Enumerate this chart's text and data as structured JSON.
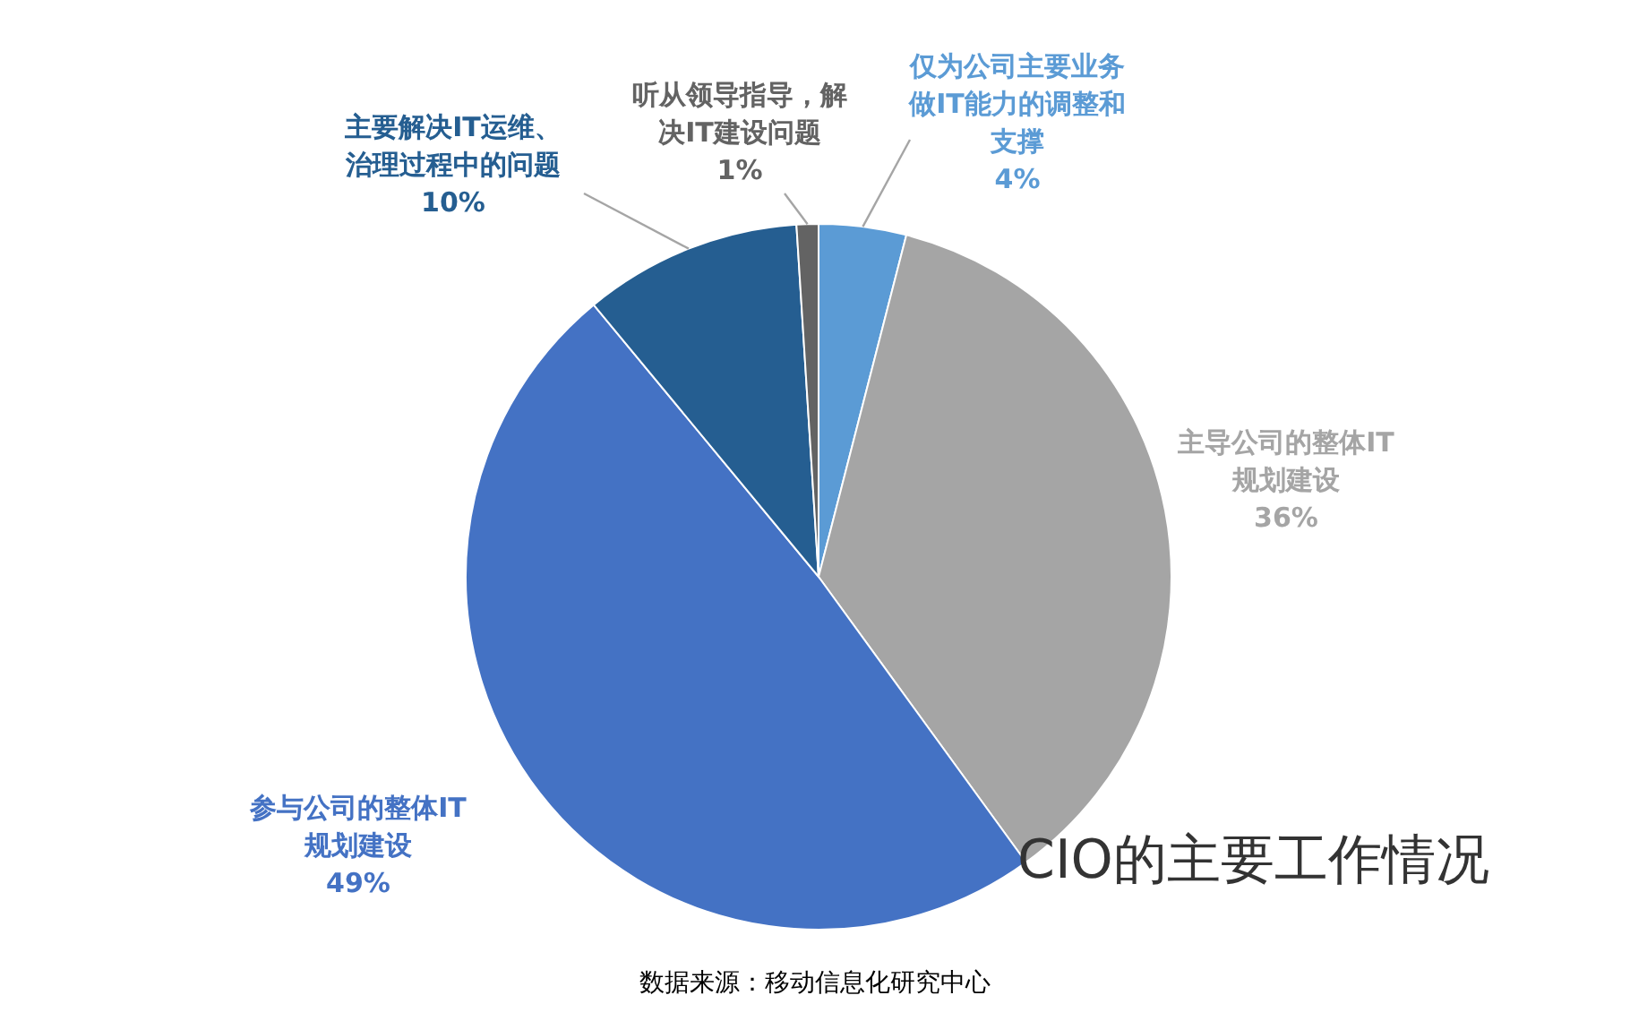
{
  "chart_data": {
    "type": "pie",
    "title": "CIO的主要工作情况",
    "categories": [
      "仅为公司主要业务做IT能力的调整和支撑",
      "主导公司的整体IT规划建设",
      "参与公司的整体IT规划建设",
      "主要解决IT运维、治理过程中的问题",
      "听从领导指导，解决IT建设问题"
    ],
    "values": [
      4,
      36,
      49,
      10,
      1
    ],
    "value_labels": [
      "4%",
      "36%",
      "49%",
      "10%",
      "1%"
    ],
    "colors": [
      "#5b9bd5",
      "#a5a5a5",
      "#4472c4",
      "#255e91",
      "#636363"
    ],
    "annotations": [
      "数据来源：移动信息化研究中心"
    ],
    "legend": false
  }
}
